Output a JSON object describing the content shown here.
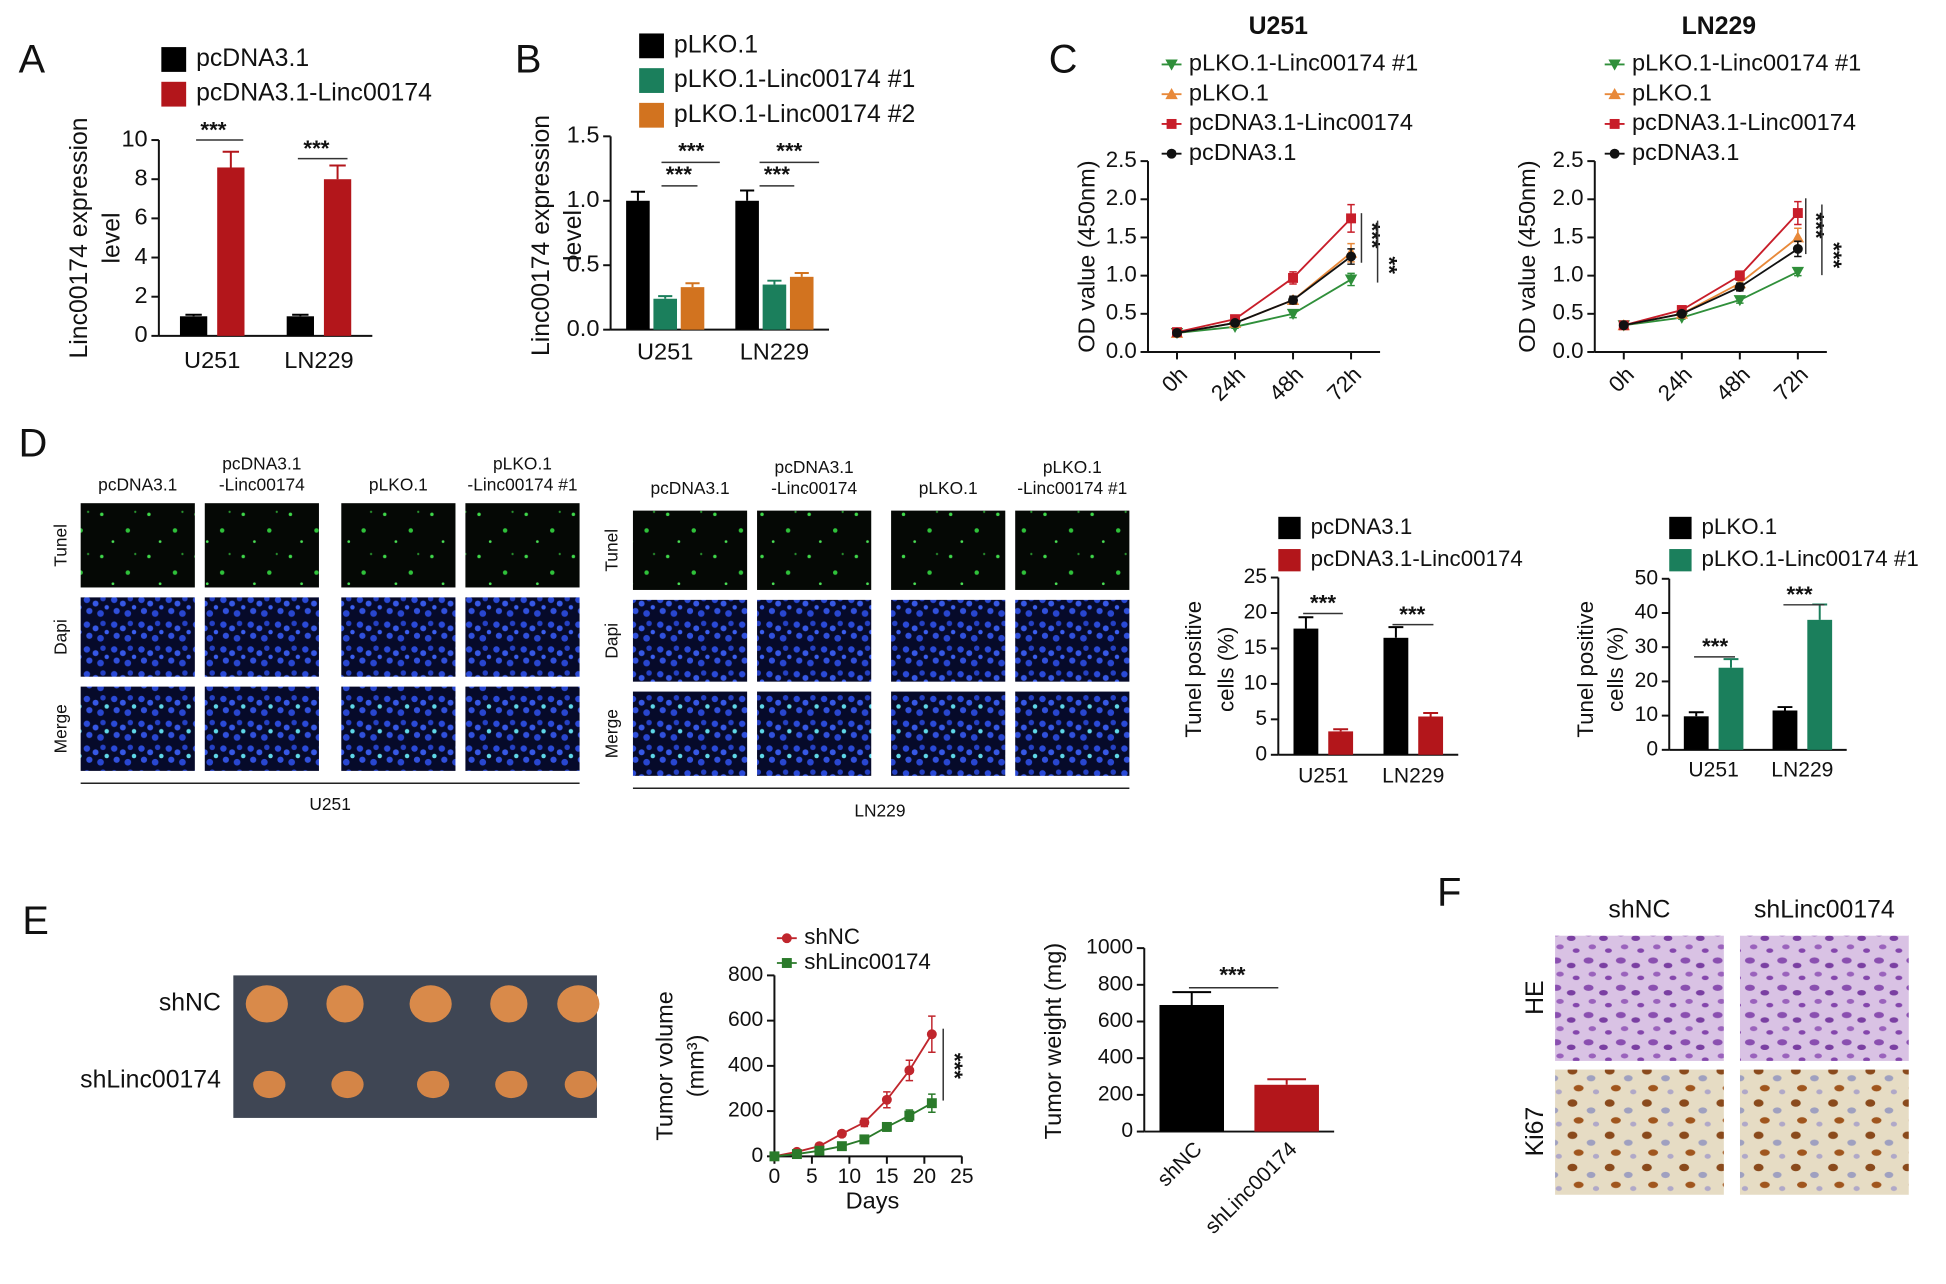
{
  "panel_labels": [
    "A",
    "B",
    "C",
    "D",
    "E",
    "F"
  ],
  "chart_data": [
    {
      "type": "bar",
      "categories": [
        "U251",
        "LN229"
      ],
      "series": [
        {
          "name": "pcDNA3.1",
          "color": "#000000",
          "values": [
            1.0,
            1.0
          ],
          "errors": [
            0.08,
            0.08
          ]
        },
        {
          "name": "pcDNA3.1-Linc00174",
          "color": "#b3161b",
          "values": [
            8.6,
            8.0
          ],
          "errors": [
            0.8,
            0.7
          ]
        }
      ],
      "ylim": [
        0,
        10
      ],
      "yticks": [
        0,
        2,
        4,
        6,
        8,
        10
      ],
      "y_label": [
        "Linc00174 expression",
        "level"
      ],
      "annotations": [
        "***",
        "***"
      ]
    },
    {
      "type": "bar",
      "categories": [
        "U251",
        "LN229"
      ],
      "series": [
        {
          "name": "pLKO.1",
          "color": "#000000",
          "values": [
            1.0,
            1.0
          ],
          "errors": [
            0.07,
            0.08
          ]
        },
        {
          "name": "pLKO.1-Linc00174 #1",
          "color": "#1b7f5c",
          "values": [
            0.24,
            0.35
          ],
          "errors": [
            0.02,
            0.03
          ]
        },
        {
          "name": "pLKO.1-Linc00174 #2",
          "color": "#d2731f",
          "values": [
            0.33,
            0.41
          ],
          "errors": [
            0.03,
            0.03
          ]
        }
      ],
      "ylim": [
        0,
        1.5
      ],
      "yticks": [
        {
          "value": 0,
          "label": "0.0"
        },
        0.5,
        {
          "value": 1,
          "label": "1.0"
        },
        1.5
      ],
      "y_label": [
        "Linc00174 expression",
        "level"
      ],
      "annotations": [
        "***",
        "***",
        "***",
        "***"
      ]
    },
    {
      "type": "line",
      "title": "U251",
      "categories": [
        "0h",
        "24h",
        "48h",
        "72h"
      ],
      "series": [
        {
          "name": "pLKO.1-Linc00174 #1",
          "color": "#2f8f3a",
          "marker": "triangle-down",
          "values": [
            0.25,
            0.33,
            0.5,
            0.95
          ],
          "errors": [
            0.02,
            0.02,
            0.05,
            0.08
          ]
        },
        {
          "name": "pLKO.1",
          "color": "#e8893a",
          "marker": "triangle",
          "values": [
            0.25,
            0.38,
            0.68,
            1.3
          ],
          "errors": [
            0.02,
            0.03,
            0.05,
            0.12
          ]
        },
        {
          "name": "pcDNA3.1-Linc00174",
          "color": "#c81e2a",
          "marker": "square",
          "values": [
            0.26,
            0.43,
            0.97,
            1.75
          ],
          "errors": [
            0.02,
            0.03,
            0.08,
            0.18
          ]
        },
        {
          "name": "pcDNA3.1",
          "color": "#111111",
          "marker": "circle",
          "values": [
            0.25,
            0.38,
            0.68,
            1.25
          ],
          "errors": [
            0.02,
            0.03,
            0.05,
            0.1
          ]
        }
      ],
      "ylim": [
        0,
        2.5
      ],
      "yticks": [
        {
          "value": 0,
          "label": "0.0"
        },
        0.5,
        {
          "value": 1,
          "label": "1.0"
        },
        1.5,
        {
          "value": 2,
          "label": "2.0"
        },
        2.5
      ],
      "y_label": [
        "OD value (450nm)"
      ],
      "annotations": [
        "***",
        "**"
      ]
    },
    {
      "type": "line",
      "title": "LN229",
      "categories": [
        "0h",
        "24h",
        "48h",
        "72h"
      ],
      "series": [
        {
          "name": "pLKO.1-Linc00174 #1",
          "color": "#2f8f3a",
          "marker": "triangle-down",
          "values": [
            0.35,
            0.45,
            0.68,
            1.05
          ],
          "errors": [
            0.02,
            0.02,
            0.04,
            0.05
          ]
        },
        {
          "name": "pLKO.1",
          "color": "#e8893a",
          "marker": "triangle",
          "values": [
            0.35,
            0.5,
            0.9,
            1.5
          ],
          "errors": [
            0.02,
            0.03,
            0.06,
            0.12
          ]
        },
        {
          "name": "pcDNA3.1-Linc00174",
          "color": "#c81e2a",
          "marker": "square",
          "values": [
            0.35,
            0.55,
            1.0,
            1.82
          ],
          "errors": [
            0.02,
            0.03,
            0.06,
            0.15
          ]
        },
        {
          "name": "pcDNA3.1",
          "color": "#111111",
          "marker": "circle",
          "values": [
            0.35,
            0.5,
            0.85,
            1.35
          ],
          "errors": [
            0.02,
            0.03,
            0.05,
            0.1
          ]
        }
      ],
      "ylim": [
        0,
        2.5
      ],
      "yticks": [
        {
          "value": 0,
          "label": "0.0"
        },
        0.5,
        {
          "value": 1,
          "label": "1.0"
        },
        1.5,
        {
          "value": 2,
          "label": "2.0"
        },
        2.5
      ],
      "y_label": [
        "OD value (450nm)"
      ],
      "annotations": [
        "***",
        "***"
      ]
    },
    {
      "type": "bar",
      "categories": [
        "U251",
        "LN229"
      ],
      "series": [
        {
          "name": "pcDNA3.1",
          "color": "#000000",
          "values": [
            17.8,
            16.5
          ],
          "errors": [
            1.6,
            1.5
          ]
        },
        {
          "name": "pcDNA3.1-Linc00174",
          "color": "#b3161b",
          "values": [
            3.3,
            5.4
          ],
          "errors": [
            0.3,
            0.5
          ]
        }
      ],
      "ylim": [
        0,
        25
      ],
      "yticks": [
        0,
        5,
        10,
        15,
        20,
        25
      ],
      "y_label": [
        "Tunel positive",
        "cells (%)"
      ],
      "annotations": [
        "***",
        "***"
      ]
    },
    {
      "type": "bar",
      "categories": [
        "U251",
        "LN229"
      ],
      "series": [
        {
          "name": "pLKO.1",
          "color": "#000000",
          "values": [
            9.8,
            11.5
          ],
          "errors": [
            1.2,
            1.0
          ]
        },
        {
          "name": "pLKO.1-Linc00174 #1",
          "color": "#1b7f5c",
          "values": [
            24,
            38
          ],
          "errors": [
            2.5,
            4.5
          ]
        }
      ],
      "ylim": [
        0,
        50
      ],
      "yticks": [
        0,
        10,
        20,
        30,
        40,
        50
      ],
      "y_label": [
        "Tunel positive",
        "cells (%)"
      ],
      "annotations": [
        "***",
        "***"
      ]
    },
    {
      "type": "line",
      "x": [
        0,
        3,
        6,
        9,
        12,
        15,
        18,
        21
      ],
      "series": [
        {
          "name": "shNC",
          "color": "#c0262d",
          "marker": "circle",
          "values": [
            0,
            20,
            45,
            100,
            150,
            250,
            380,
            540
          ],
          "errors": [
            0,
            5,
            8,
            12,
            18,
            35,
            45,
            80
          ]
        },
        {
          "name": "shLinc00174",
          "color": "#2a7a2a",
          "marker": "square",
          "values": [
            0,
            10,
            25,
            45,
            75,
            130,
            180,
            235
          ],
          "errors": [
            0,
            3,
            5,
            8,
            10,
            18,
            25,
            40
          ]
        }
      ],
      "xlim": [
        0,
        25
      ],
      "xticks": [
        0,
        5,
        10,
        15,
        20,
        25
      ],
      "ylim": [
        0,
        800
      ],
      "yticks": [
        0,
        200,
        400,
        600,
        800
      ],
      "x_label": "Days",
      "y_label": [
        "Tumor volume",
        "(mm³)"
      ],
      "annotations": [
        "***"
      ]
    },
    {
      "type": "bar",
      "categories": [
        "shNC",
        "shLinc00174"
      ],
      "values": [
        690,
        255
      ],
      "errors": [
        70,
        30
      ],
      "colors": [
        "#000000",
        "#b3161b"
      ],
      "ylim": [
        0,
        1000
      ],
      "yticks": [
        0,
        200,
        400,
        600,
        800,
        1000
      ],
      "y_label": [
        "Tumor weight (mg)"
      ],
      "annotations": [
        "***"
      ]
    }
  ],
  "tunel_images": [
    {
      "group": "U251",
      "columns": [
        [
          "pcDNA3.1"
        ],
        [
          "pcDNA3.1",
          "-Linc00174"
        ],
        [
          "pLKO.1"
        ],
        [
          "pLKO.1",
          "-Linc00174 #1"
        ]
      ],
      "rows": [
        "Tunel",
        "Dapi",
        "Merge"
      ]
    },
    {
      "group": "LN229",
      "columns": [
        [
          "pcDNA3.1"
        ],
        [
          "pcDNA3.1",
          "-Linc00174"
        ],
        [
          "pLKO.1"
        ],
        [
          "pLKO.1",
          "-Linc00174 #1"
        ]
      ],
      "rows": [
        "Tunel",
        "Dapi",
        "Merge"
      ]
    }
  ],
  "xenograft": {
    "rows": [
      "shNC",
      "shLinc00174"
    ]
  },
  "ihc": {
    "columns": [
      "shNC",
      "shLinc00174"
    ],
    "rows": [
      "HE",
      "Ki67"
    ]
  }
}
